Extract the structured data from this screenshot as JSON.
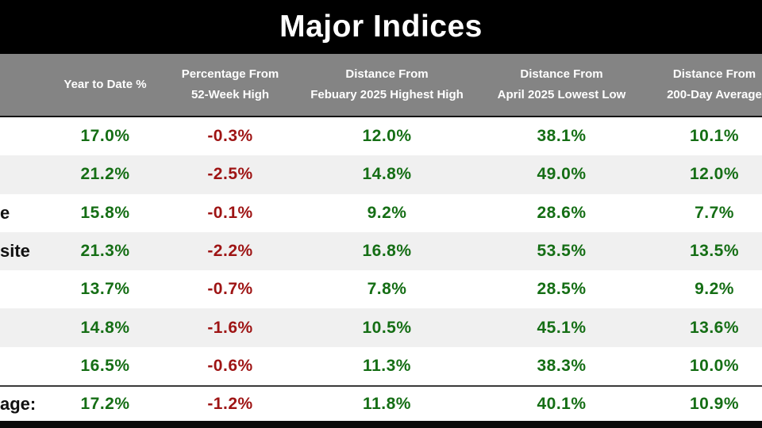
{
  "title": "Major Indices",
  "header": {
    "columns": [
      {
        "line1": "Year to Date %",
        "line2": ""
      },
      {
        "line1": "Percentage From",
        "line2": "52-Week High"
      },
      {
        "line1": "Distance From",
        "line2": "Febuary 2025 Highest High"
      },
      {
        "line1": "Distance From",
        "line2": "April 2025 Lowest Low"
      },
      {
        "line1": "Distance From",
        "line2": "200-Day Average"
      }
    ]
  },
  "rows": [
    {
      "label": "",
      "values": [
        "17.0%",
        "-0.3%",
        "12.0%",
        "38.1%",
        "10.1%"
      ]
    },
    {
      "label": "",
      "values": [
        "21.2%",
        "-2.5%",
        "14.8%",
        "49.0%",
        "12.0%"
      ]
    },
    {
      "label": "e",
      "values": [
        "15.8%",
        "-0.1%",
        "9.2%",
        "28.6%",
        "7.7%"
      ]
    },
    {
      "label": "site",
      "values": [
        "21.3%",
        "-2.2%",
        "16.8%",
        "53.5%",
        "13.5%"
      ]
    },
    {
      "label": "",
      "values": [
        "13.7%",
        "-0.7%",
        "7.8%",
        "28.5%",
        "9.2%"
      ]
    },
    {
      "label": "",
      "values": [
        "14.8%",
        "-1.6%",
        "10.5%",
        "45.1%",
        "13.6%"
      ]
    },
    {
      "label": "",
      "values": [
        "16.5%",
        "-0.6%",
        "11.3%",
        "38.3%",
        "10.0%"
      ]
    }
  ],
  "summary": {
    "label": "age:",
    "values": [
      "17.2%",
      "-1.2%",
      "11.8%",
      "40.1%",
      "10.9%"
    ]
  },
  "colors": {
    "positive_green": "#156e15",
    "negative_red": "#9e1414",
    "header_gray": "#848484",
    "stripe_gray": "#f0f0f0",
    "title_bar_black": "#000000",
    "label_black": "#111111"
  },
  "chart_data": {
    "type": "table",
    "title": "Major Indices",
    "columns": [
      "Year to Date %",
      "Percentage From 52-Week High",
      "Distance From Febuary 2025 Highest High",
      "Distance From April 2025 Lowest Low",
      "Distance From 200-Day Average"
    ],
    "row_labels_visible_fragments": [
      "",
      "",
      "e",
      "site",
      "",
      "",
      "",
      "age:"
    ],
    "rows": [
      [
        17.0,
        -0.3,
        12.0,
        38.1,
        10.1
      ],
      [
        21.2,
        -2.5,
        14.8,
        49.0,
        12.0
      ],
      [
        15.8,
        -0.1,
        9.2,
        28.6,
        7.7
      ],
      [
        21.3,
        -2.2,
        16.8,
        53.5,
        13.5
      ],
      [
        13.7,
        -0.7,
        7.8,
        28.5,
        9.2
      ],
      [
        14.8,
        -1.6,
        10.5,
        45.1,
        13.6
      ],
      [
        16.5,
        -0.6,
        11.3,
        38.3,
        10.0
      ],
      [
        17.2,
        -1.2,
        11.8,
        40.1,
        10.9
      ]
    ],
    "units": "percent",
    "notes": "last row is the column average; negative values rendered red, positive green; table cropped at left and right screen edges"
  }
}
